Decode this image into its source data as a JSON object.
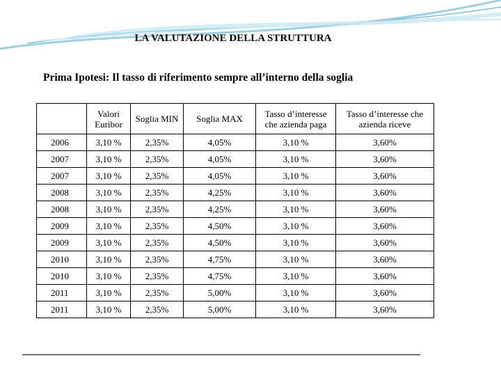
{
  "title": "LA VALUTAZIONE DELLA STRUTTURA",
  "subtitle": "Prima Ipotesi: Il tasso di riferimento sempre all’interno della soglia",
  "table": {
    "headers": [
      "Valori Euribor",
      "Soglia MIN",
      "Soglia MAX",
      "Tasso d’interesse che azienda paga",
      "Tasso d’interesse che azienda riceve"
    ],
    "rows": [
      [
        "2006",
        "3,10 %",
        "2,35%",
        "4,05%",
        "3,10 %",
        "3,60%"
      ],
      [
        "2007",
        "3,10 %",
        "2,35%",
        "4,05%",
        "3,10 %",
        "3,60%"
      ],
      [
        "2007",
        "3,10 %",
        "2,35%",
        "4,05%",
        "3,10 %",
        "3,60%"
      ],
      [
        "2008",
        "3,10 %",
        "2,35%",
        "4,25%",
        "3,10 %",
        "3,60%"
      ],
      [
        "2008",
        "3,10 %",
        "2,35%",
        "4,25%",
        "3,10 %",
        "3,60%"
      ],
      [
        "2009",
        "3,10 %",
        "2,35%",
        "4,50%",
        "3,10 %",
        "3,60%"
      ],
      [
        "2009",
        "3,10 %",
        "2,35%",
        "4,50%",
        "3,10 %",
        "3,60%"
      ],
      [
        "2010",
        "3,10 %",
        "2,35%",
        "4,75%",
        "3,10 %",
        "3,60%"
      ],
      [
        "2010",
        "3,10 %",
        "2,35%",
        "4,75%",
        "3,10 %",
        "3,60%"
      ],
      [
        "2011",
        "3,10 %",
        "2,35%",
        "5,00%",
        "3,10 %",
        "3,60%"
      ],
      [
        "2011",
        "3,10 %",
        "2,35%",
        "5,00%",
        "3,10 %",
        "3,60%"
      ]
    ]
  }
}
